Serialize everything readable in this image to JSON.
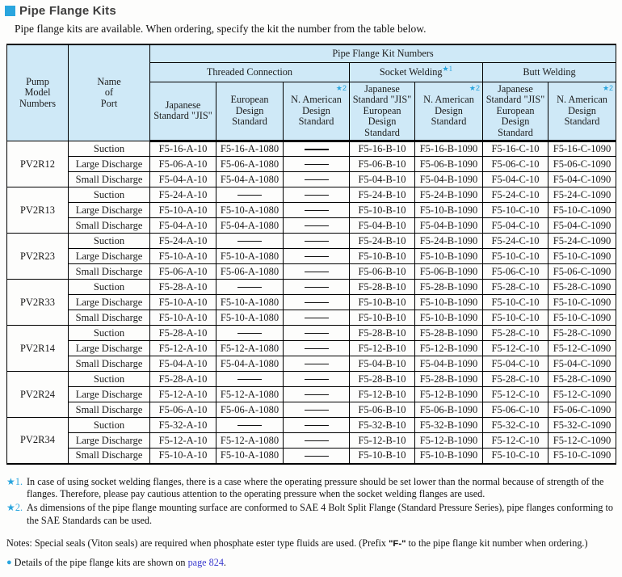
{
  "colors": {
    "header_bg": "#cfe9f7",
    "accent": "#29a5de",
    "link": "#3c3ccf"
  },
  "page": {
    "title": "Pipe Flange Kits",
    "intro": "Pipe flange kits are available.  When ordering, specify the kit the number from the table below."
  },
  "table": {
    "header": {
      "pump": "Pump\nModel\nNumbers",
      "port": "Name\nof\nPort",
      "kit_numbers": "Pipe Flange Kit Numbers",
      "connection_groups": [
        {
          "label": "Threaded Connection",
          "footnote": ""
        },
        {
          "label": "Socket Welding",
          "footnote": "★1"
        },
        {
          "label": "Butt Welding",
          "footnote": ""
        }
      ],
      "columns": [
        {
          "lines": "Japanese\nStandard \"JIS\"",
          "footnote": ""
        },
        {
          "lines": "European\nDesign\nStandard",
          "footnote": ""
        },
        {
          "lines": "N. American\nDesign\nStandard",
          "footnote": "★2"
        },
        {
          "lines": "Japanese\nStandard \"JIS\"\nEuropean\nDesign\nStandard",
          "footnote": ""
        },
        {
          "lines": "N. American\nDesign\nStandard",
          "footnote": "★2"
        },
        {
          "lines": "Japanese\nStandard \"JIS\"\nEuropean\nDesign\nStandard",
          "footnote": ""
        },
        {
          "lines": "N. American\nDesign\nStandard",
          "footnote": "★2"
        }
      ]
    },
    "groups": [
      {
        "model": "PV2R12",
        "rows": [
          {
            "port": "Suction",
            "cells": [
              "F5-16-A-10",
              "F5-16-A-1080",
              "——",
              "F5-16-B-10",
              "F5-16-B-1090",
              "F5-16-C-10",
              "F5-16-C-1090"
            ]
          },
          {
            "port": "Large Discharge",
            "cells": [
              "F5-06-A-10",
              "F5-06-A-1080",
              "——",
              "F5-06-B-10",
              "F5-06-B-1090",
              "F5-06-C-10",
              "F5-06-C-1090"
            ]
          },
          {
            "port": "Small Discharge",
            "cells": [
              "F5-04-A-10",
              "F5-04-A-1080",
              "——",
              "F5-04-B-10",
              "F5-04-B-1090",
              "F5-04-C-10",
              "F5-04-C-1090"
            ]
          }
        ]
      },
      {
        "model": "PV2R13",
        "rows": [
          {
            "port": "Suction",
            "cells": [
              "F5-24-A-10",
              "——",
              "——",
              "F5-24-B-10",
              "F5-24-B-1090",
              "F5-24-C-10",
              "F5-24-C-1090"
            ]
          },
          {
            "port": "Large Discharge",
            "cells": [
              "F5-10-A-10",
              "F5-10-A-1080",
              "——",
              "F5-10-B-10",
              "F5-10-B-1090",
              "F5-10-C-10",
              "F5-10-C-1090"
            ]
          },
          {
            "port": "Small Discharge",
            "cells": [
              "F5-04-A-10",
              "F5-04-A-1080",
              "——",
              "F5-04-B-10",
              "F5-04-B-1090",
              "F5-04-C-10",
              "F5-04-C-1090"
            ]
          }
        ]
      },
      {
        "model": "PV2R23",
        "rows": [
          {
            "port": "Suction",
            "cells": [
              "F5-24-A-10",
              "——",
              "——",
              "F5-24-B-10",
              "F5-24-B-1090",
              "F5-24-C-10",
              "F5-24-C-1090"
            ]
          },
          {
            "port": "Large Discharge",
            "cells": [
              "F5-10-A-10",
              "F5-10-A-1080",
              "——",
              "F5-10-B-10",
              "F5-10-B-1090",
              "F5-10-C-10",
              "F5-10-C-1090"
            ]
          },
          {
            "port": "Small Discharge",
            "cells": [
              "F5-06-A-10",
              "F5-06-A-1080",
              "——",
              "F5-06-B-10",
              "F5-06-B-1090",
              "F5-06-C-10",
              "F5-06-C-1090"
            ]
          }
        ]
      },
      {
        "model": "PV2R33",
        "rows": [
          {
            "port": "Suction",
            "cells": [
              "F5-28-A-10",
              "——",
              "——",
              "F5-28-B-10",
              "F5-28-B-1090",
              "F5-28-C-10",
              "F5-28-C-1090"
            ]
          },
          {
            "port": "Large Discharge",
            "cells": [
              "F5-10-A-10",
              "F5-10-A-1080",
              "——",
              "F5-10-B-10",
              "F5-10-B-1090",
              "F5-10-C-10",
              "F5-10-C-1090"
            ]
          },
          {
            "port": "Small Discharge",
            "cells": [
              "F5-10-A-10",
              "F5-10-A-1080",
              "——",
              "F5-10-B-10",
              "F5-10-B-1090",
              "F5-10-C-10",
              "F5-10-C-1090"
            ]
          }
        ]
      },
      {
        "model": "PV2R14",
        "rows": [
          {
            "port": "Suction",
            "cells": [
              "F5-28-A-10",
              "——",
              "——",
              "F5-28-B-10",
              "F5-28-B-1090",
              "F5-28-C-10",
              "F5-28-C-1090"
            ]
          },
          {
            "port": "Large Discharge",
            "cells": [
              "F5-12-A-10",
              "F5-12-A-1080",
              "——",
              "F5-12-B-10",
              "F5-12-B-1090",
              "F5-12-C-10",
              "F5-12-C-1090"
            ]
          },
          {
            "port": "Small Discharge",
            "cells": [
              "F5-04-A-10",
              "F5-04-A-1080",
              "——",
              "F5-04-B-10",
              "F5-04-B-1090",
              "F5-04-C-10",
              "F5-04-C-1090"
            ]
          }
        ]
      },
      {
        "model": "PV2R24",
        "rows": [
          {
            "port": "Suction",
            "cells": [
              "F5-28-A-10",
              "——",
              "——",
              "F5-28-B-10",
              "F5-28-B-1090",
              "F5-28-C-10",
              "F5-28-C-1090"
            ]
          },
          {
            "port": "Large Discharge",
            "cells": [
              "F5-12-A-10",
              "F5-12-A-1080",
              "——",
              "F5-12-B-10",
              "F5-12-B-1090",
              "F5-12-C-10",
              "F5-12-C-1090"
            ]
          },
          {
            "port": "Small Discharge",
            "cells": [
              "F5-06-A-10",
              "F5-06-A-1080",
              "——",
              "F5-06-B-10",
              "F5-06-B-1090",
              "F5-06-C-10",
              "F5-06-C-1090"
            ]
          }
        ]
      },
      {
        "model": "PV2R34",
        "rows": [
          {
            "port": "Suction",
            "cells": [
              "F5-32-A-10",
              "——",
              "——",
              "F5-32-B-10",
              "F5-32-B-1090",
              "F5-32-C-10",
              "F5-32-C-1090"
            ]
          },
          {
            "port": "Large Discharge",
            "cells": [
              "F5-12-A-10",
              "F5-12-A-1080",
              "——",
              "F5-12-B-10",
              "F5-12-B-1090",
              "F5-12-C-10",
              "F5-12-C-1090"
            ]
          },
          {
            "port": "Small Discharge",
            "cells": [
              "F5-10-A-10",
              "F5-10-A-1080",
              "——",
              "F5-10-B-10",
              "F5-10-B-1090",
              "F5-10-C-10",
              "F5-10-C-1090"
            ]
          }
        ]
      }
    ]
  },
  "footnotes": [
    {
      "marker": "★1.",
      "text": "In case of using socket welding flanges, there is a case where the operating pressure should be set lower than the normal because of strength of the flanges. Therefore, please pay cautious attention to the operating pressure when the socket welding flanges are used."
    },
    {
      "marker": "★2.",
      "text": "As dimensions of the pipe flange mounting surface are conformed to SAE 4 Bolt Split Flange (Standard Pressure Series), pipe flanges conforming to the SAE Standards can be used."
    }
  ],
  "notes": {
    "prefix": "Notes: Special seals (Viton seals) are required when phosphate ester type fluids are used. (Prefix ",
    "bold": "\"F-\"",
    "suffix": " to the pipe flange kit number when ordering.)"
  },
  "details": {
    "bullet": "●",
    "lead": "Details of the pipe flange kits are shown on ",
    "link": "page 824",
    "tail": "."
  }
}
